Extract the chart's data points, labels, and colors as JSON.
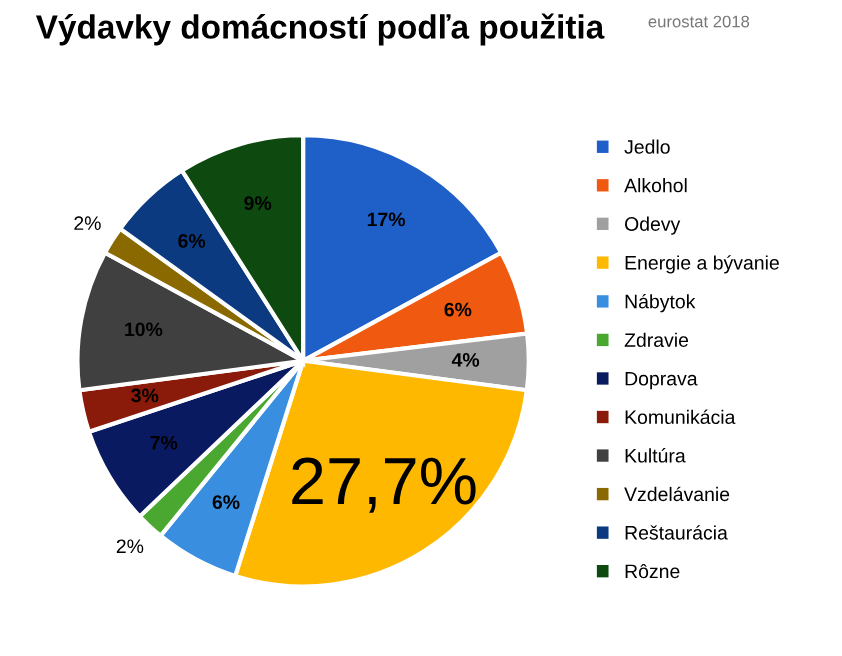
{
  "chart_data": {
    "type": "pie",
    "title": "Výdavky domácností podľa použitia",
    "annotations": [
      "eurostat 2018"
    ],
    "categories": [
      "Jedlo",
      "Alkohol",
      "Odevy",
      "Energie a bývanie",
      "Nábytok",
      "Zdravie",
      "Doprava",
      "Komunikácia",
      "Kultúra",
      "Vzdelávanie",
      "Reštaurácia",
      "Rôzne"
    ],
    "values": [
      17,
      6,
      4,
      27.7,
      6,
      2,
      7,
      3,
      10,
      2,
      6,
      9
    ],
    "value_labels": [
      "17%",
      "6%",
      "4%",
      "27,7%",
      "6%",
      "2%",
      "7%",
      "3%",
      "10%",
      "2%",
      "6%",
      "9%"
    ],
    "colors": [
      "#1f5fc8",
      "#f05a10",
      "#a0a0a0",
      "#ffb800",
      "#3a8ee0",
      "#4aa830",
      "#0a1a60",
      "#8a1a0a",
      "#404040",
      "#8a6a00",
      "#0c3a80",
      "#0e4a10"
    ],
    "legend": "right"
  }
}
